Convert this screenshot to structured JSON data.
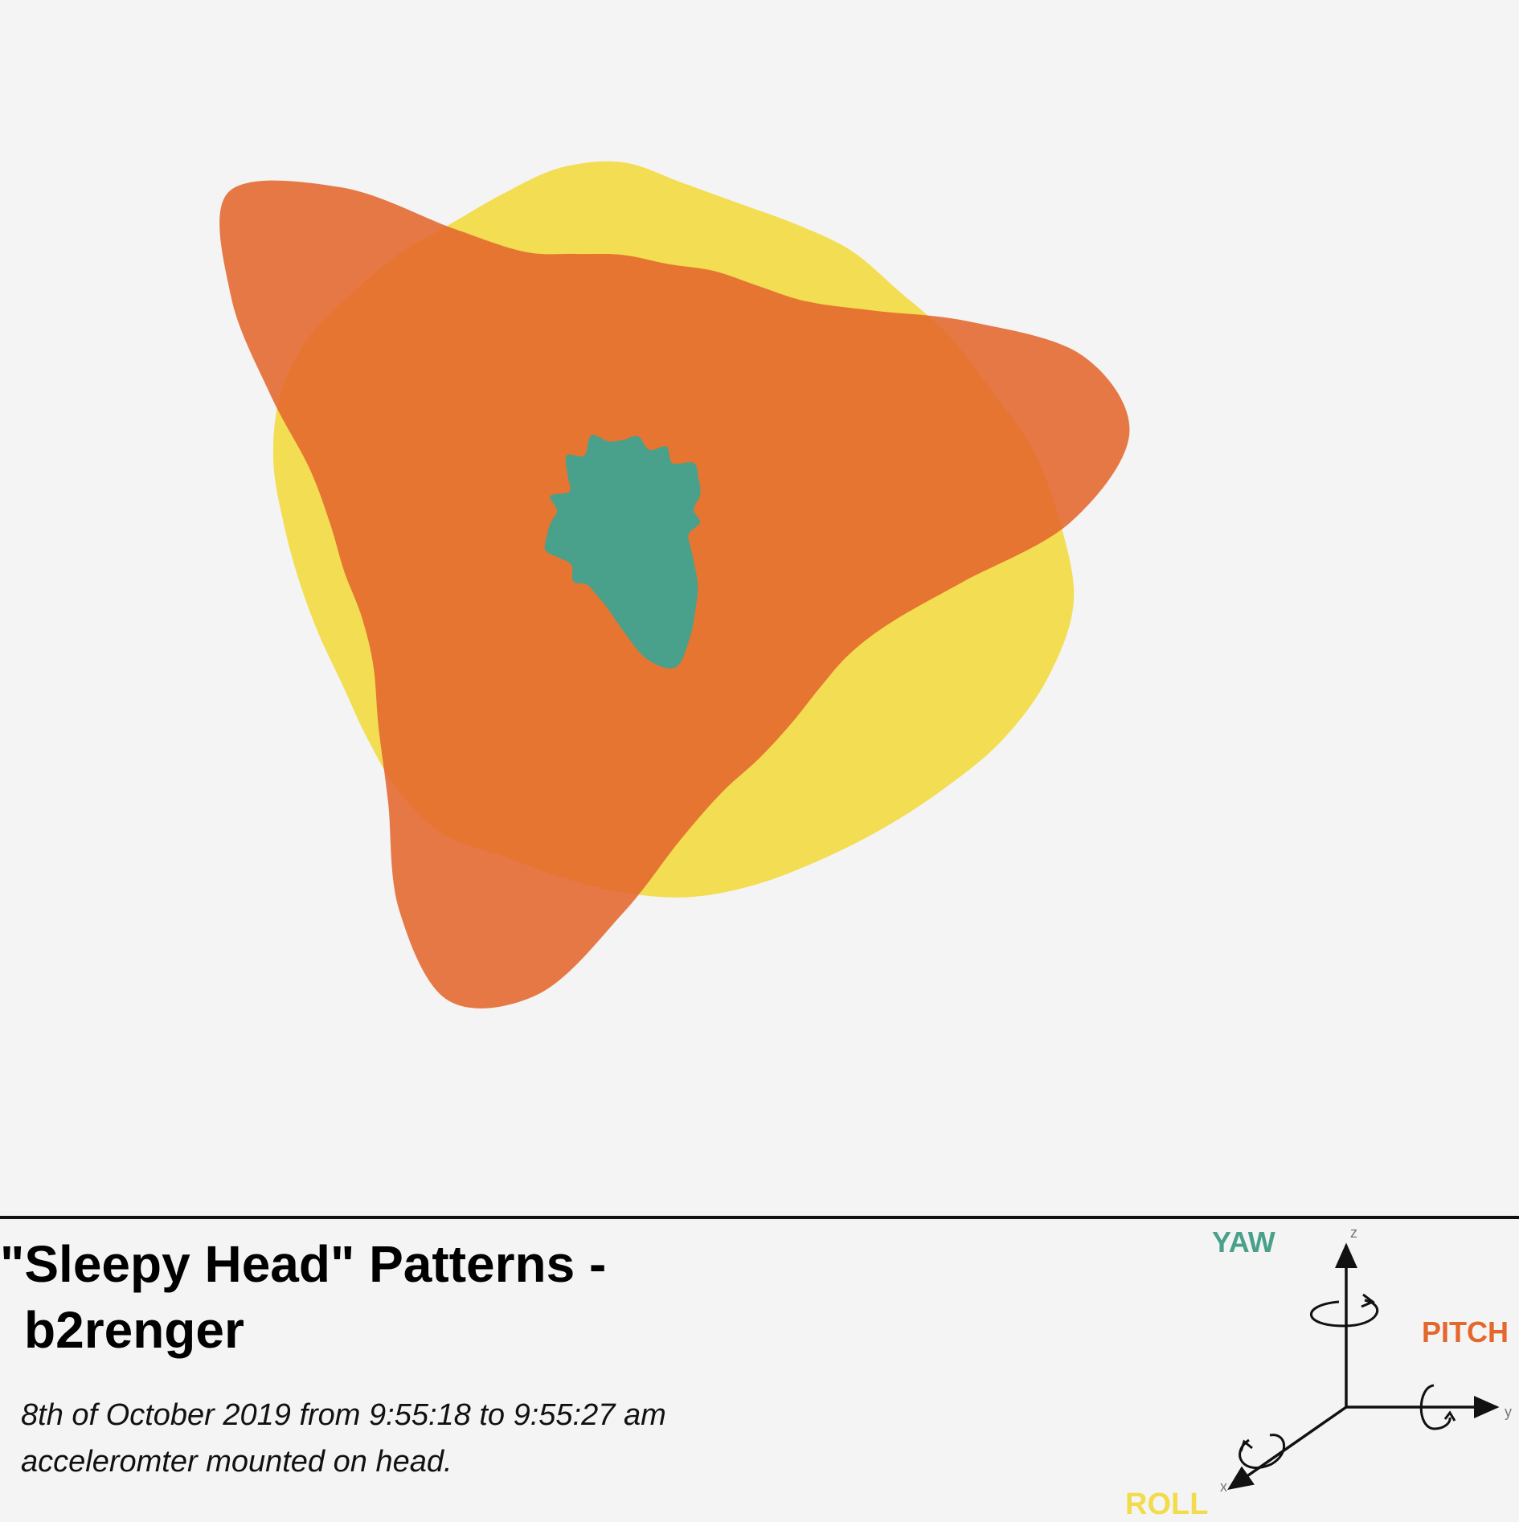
{
  "chart_data": {
    "type": "area",
    "subtype": "radial",
    "title": "\"Sleepy Head\" Patterns - b2renger",
    "subtitle_lines": [
      "8th of October 2019 from 9:55:18 to 9:55:27 am",
      "acceleromter mounted on head."
    ],
    "series": [
      {
        "name": "ROLL",
        "color": "#f2dc4b",
        "values": [
          0.7,
          0.67,
          0.66,
          0.67,
          0.69,
          0.7,
          0.73,
          0.76,
          0.81,
          0.85,
          0.89,
          0.88,
          0.85,
          0.81,
          0.78,
          0.76,
          0.75,
          0.74,
          0.72,
          0.7,
          0.69,
          0.7,
          0.68,
          0.65,
          0.63,
          0.63,
          0.64,
          0.66,
          0.69,
          0.71,
          0.71,
          0.69,
          0.68,
          0.67,
          0.68,
          0.7
        ]
      },
      {
        "name": "PITCH",
        "color": "#e4672e",
        "values": [
          0.52,
          0.51,
          0.52,
          0.53,
          0.56,
          0.64,
          0.78,
          0.95,
          1.0,
          0.87,
          0.67,
          0.56,
          0.51,
          0.5,
          0.51,
          0.53,
          0.56,
          0.63,
          0.76,
          0.93,
          0.99,
          0.87,
          0.71,
          0.62,
          0.56,
          0.54,
          0.55,
          0.57,
          0.62,
          0.73,
          0.88,
          1.0,
          0.85,
          0.66,
          0.56,
          0.53
        ]
      },
      {
        "name": "YAW",
        "color": "#49a08b",
        "values": [
          0.16,
          0.17,
          0.15,
          0.17,
          0.15,
          0.18,
          0.17,
          0.16,
          0.14,
          0.15,
          0.13,
          0.14,
          0.16,
          0.19,
          0.22,
          0.26,
          0.3,
          0.27,
          0.21,
          0.17,
          0.15,
          0.14,
          0.15,
          0.13,
          0.14,
          0.16,
          0.15,
          0.14,
          0.13,
          0.15,
          0.12,
          0.14,
          0.17,
          0.15,
          0.18,
          0.16
        ]
      }
    ],
    "legend": "bottom-right",
    "grid": false
  },
  "axes_legend": {
    "yaw_label": "YAW",
    "pitch_label": "PITCH",
    "roll_label": "ROLL",
    "z_label": "z",
    "y_label": "y",
    "x_label": "x",
    "yaw_color": "#49a08b",
    "pitch_color": "#e4672e",
    "roll_color": "#f2dc4b"
  },
  "texts": {
    "title_line1": "\"Sleepy Head\" Patterns -",
    "title_line2": "b2renger",
    "subtitle_line1": "8th of October 2019 from 9:55:18 to 9:55:27 am",
    "subtitle_line2": "acceleromter mounted on head."
  }
}
